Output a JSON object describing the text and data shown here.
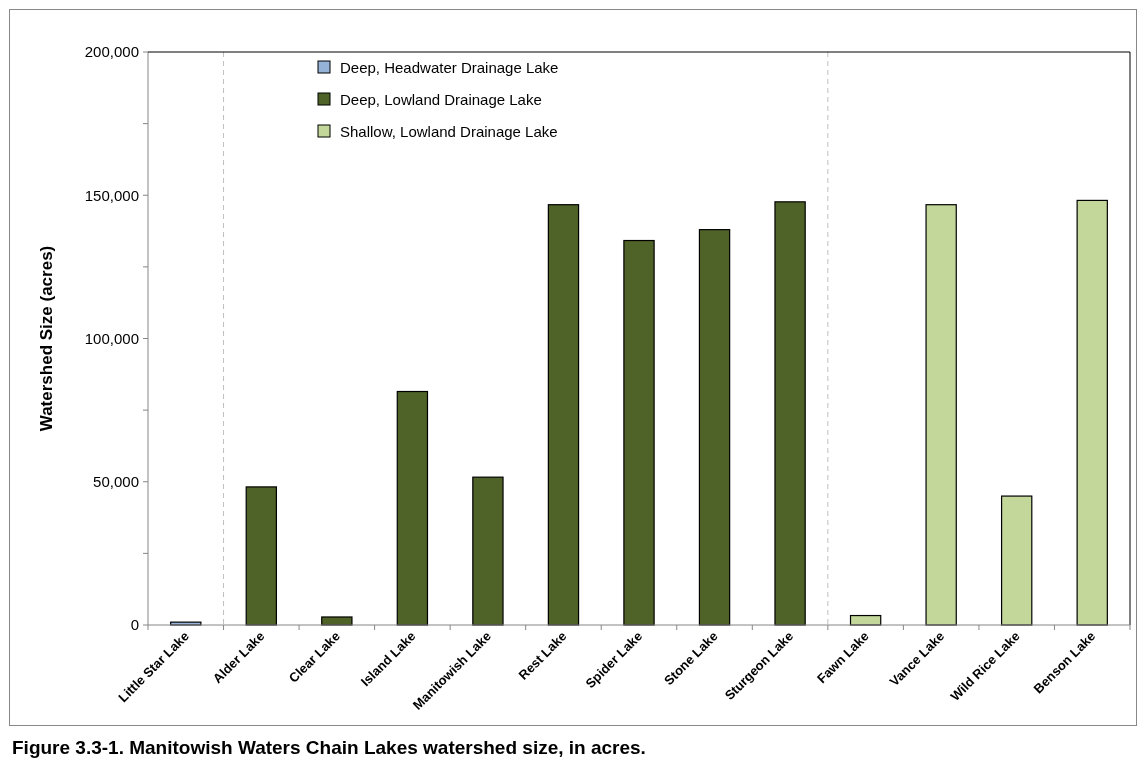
{
  "chart_data": {
    "type": "bar",
    "title": "Figure 3.3-1.  Manitowish Waters Chain Lakes watershed size, in acres.",
    "ylabel": "Watershed Size (acres)",
    "categories": [
      "Little Star Lake",
      "Alder Lake",
      "Clear Lake",
      "Island Lake",
      "Manitowish Lake",
      "Rest Lake",
      "Spider Lake",
      "Stone Lake",
      "Sturgeon Lake",
      "Fawn Lake",
      "Vance Lake",
      "Wild Rice Lake",
      "Benson Lake"
    ],
    "series": [
      {
        "name": "Deep, Headwater Drainage Lake",
        "color": "#95b3d7",
        "values": [
          1000,
          null,
          null,
          null,
          null,
          null,
          null,
          null,
          null,
          null,
          null,
          null,
          null
        ]
      },
      {
        "name": "Deep, Lowland Drainage Lake",
        "color": "#4f6228",
        "values": [
          null,
          48200,
          2800,
          81500,
          51600,
          146700,
          134200,
          138000,
          147700,
          null,
          null,
          null,
          null
        ]
      },
      {
        "name": "Shallow, Lowland Drainage Lake",
        "color": "#c4d79b",
        "values": [
          null,
          null,
          null,
          null,
          null,
          null,
          null,
          null,
          null,
          3300,
          146700,
          45000,
          148200
        ]
      }
    ],
    "ylim": [
      0,
      200000
    ],
    "yticks": [
      0,
      {
        "value": 25000,
        "label": null
      },
      {
        "value": 50000,
        "label": "50,000"
      },
      {
        "value": 75000,
        "label": null
      },
      {
        "value": 100000,
        "label": "100,000"
      },
      {
        "value": 125000,
        "label": null
      },
      {
        "value": 150000,
        "label": "150,000"
      },
      {
        "value": 175000,
        "label": null
      },
      {
        "value": 200000,
        "label": "200,000"
      }
    ],
    "grid": false,
    "legend": "top"
  }
}
